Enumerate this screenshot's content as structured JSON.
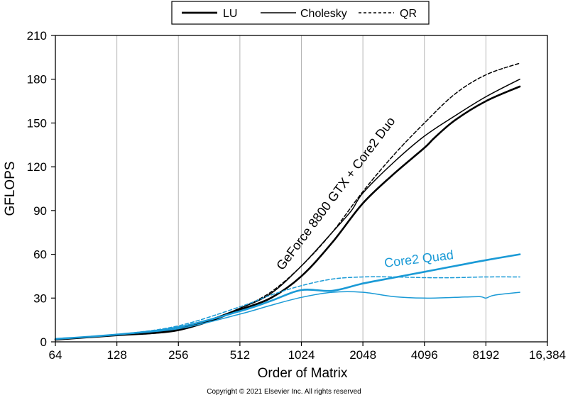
{
  "chart_data": {
    "type": "line",
    "title": "",
    "xlabel": "Order of Matrix",
    "ylabel": "GFLOPS",
    "x_scale": "log2",
    "xlim": [
      64,
      16384
    ],
    "ylim": [
      0,
      210
    ],
    "x_ticks": [
      64,
      128,
      256,
      512,
      1024,
      2048,
      4096,
      8192,
      16384
    ],
    "x_tick_labels": [
      "64",
      "128",
      "256",
      "512",
      "1024",
      "2048",
      "4096",
      "8192",
      "16,384"
    ],
    "y_ticks": [
      0,
      30,
      60,
      90,
      120,
      150,
      180,
      210
    ],
    "y_tick_labels": [
      "0",
      "30",
      "60",
      "90",
      "120",
      "150",
      "180",
      "210"
    ],
    "grid": "vertical",
    "legend": {
      "placement": "top-center",
      "entries": [
        {
          "label": "LU",
          "style": "thick-solid"
        },
        {
          "label": "Cholesky",
          "style": "thin-solid"
        },
        {
          "label": "QR",
          "style": "dashed"
        }
      ]
    },
    "annotations": [
      {
        "text": "GeForce 8800 GTX + Core2 Duo",
        "color": "#000000"
      },
      {
        "text": "Core2 Quad",
        "color": "#1a9ad6"
      }
    ],
    "series": [
      {
        "group": "GeForce 8800 GTX + Core2 Duo",
        "algorithm": "LU",
        "color": "#000000",
        "style": "thick-solid",
        "points": [
          [
            64,
            1.5
          ],
          [
            128,
            4.5
          ],
          [
            192,
            6
          ],
          [
            256,
            8
          ],
          [
            362,
            14
          ],
          [
            512,
            22
          ],
          [
            724,
            30
          ],
          [
            1024,
            45
          ],
          [
            1448,
            68
          ],
          [
            2048,
            95
          ],
          [
            2896,
            115
          ],
          [
            4096,
            133
          ],
          [
            4600,
            140
          ],
          [
            5793,
            152
          ],
          [
            8192,
            165
          ],
          [
            12000,
            175
          ]
        ]
      },
      {
        "group": "GeForce 8800 GTX + Core2 Duo",
        "algorithm": "Cholesky",
        "color": "#000000",
        "style": "thin-solid",
        "points": [
          [
            64,
            1.5
          ],
          [
            128,
            4.5
          ],
          [
            192,
            6.5
          ],
          [
            256,
            9
          ],
          [
            362,
            15
          ],
          [
            512,
            23
          ],
          [
            724,
            33
          ],
          [
            1024,
            52
          ],
          [
            1448,
            75
          ],
          [
            1800,
            90
          ],
          [
            2048,
            102
          ],
          [
            2896,
            123
          ],
          [
            4096,
            141
          ],
          [
            5793,
            155
          ],
          [
            8192,
            168
          ],
          [
            12000,
            180
          ]
        ]
      },
      {
        "group": "GeForce 8800 GTX + Core2 Duo",
        "algorithm": "QR",
        "color": "#000000",
        "style": "dashed",
        "points": [
          [
            64,
            1.5
          ],
          [
            128,
            4.5
          ],
          [
            192,
            6.5
          ],
          [
            256,
            9
          ],
          [
            362,
            15
          ],
          [
            512,
            23
          ],
          [
            724,
            34
          ],
          [
            1024,
            52
          ],
          [
            1448,
            75
          ],
          [
            2048,
            103
          ],
          [
            2896,
            128
          ],
          [
            4096,
            150
          ],
          [
            5793,
            170
          ],
          [
            8192,
            183
          ],
          [
            12000,
            191
          ]
        ]
      },
      {
        "group": "Core2 Quad",
        "algorithm": "LU",
        "color": "#1a9ad6",
        "style": "thick-solid",
        "points": [
          [
            64,
            2
          ],
          [
            128,
            5
          ],
          [
            256,
            10
          ],
          [
            512,
            21
          ],
          [
            724,
            28
          ],
          [
            1024,
            35.5
          ],
          [
            1448,
            35
          ],
          [
            2048,
            40
          ],
          [
            2896,
            44
          ],
          [
            4096,
            48
          ],
          [
            5793,
            52
          ],
          [
            8192,
            56
          ],
          [
            12000,
            60
          ]
        ]
      },
      {
        "group": "Core2 Quad",
        "algorithm": "Cholesky",
        "color": "#1a9ad6",
        "style": "thin-solid",
        "points": [
          [
            64,
            2
          ],
          [
            128,
            5
          ],
          [
            256,
            9
          ],
          [
            512,
            19
          ],
          [
            724,
            25
          ],
          [
            1024,
            30.5
          ],
          [
            1448,
            34
          ],
          [
            2048,
            34
          ],
          [
            2896,
            31
          ],
          [
            4096,
            30
          ],
          [
            5793,
            30.5
          ],
          [
            7600,
            31
          ],
          [
            8192,
            30
          ],
          [
            9000,
            32
          ],
          [
            12000,
            34
          ]
        ]
      },
      {
        "group": "Core2 Quad",
        "algorithm": "QR",
        "color": "#1a9ad6",
        "style": "dashed",
        "points": [
          [
            64,
            2
          ],
          [
            128,
            5
          ],
          [
            256,
            11
          ],
          [
            512,
            24
          ],
          [
            724,
            32
          ],
          [
            1024,
            38.5
          ],
          [
            1448,
            43
          ],
          [
            2048,
            44.5
          ],
          [
            2896,
            44.5
          ],
          [
            4096,
            44
          ],
          [
            5793,
            44
          ],
          [
            8192,
            44.5
          ],
          [
            12000,
            44.5
          ]
        ]
      }
    ]
  },
  "footer": {
    "copyright": "Copyright © 2021 Elsevier Inc. All rights reserved"
  }
}
